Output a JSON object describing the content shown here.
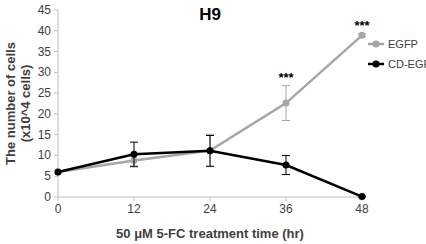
{
  "chart_data": {
    "type": "line",
    "title": "H9",
    "x_label": "50 μM 5-FC treatment time (hr)",
    "y_label": [
      "The number of cells",
      "(x10^4 cells)"
    ],
    "x": [
      0,
      12,
      24,
      36,
      48
    ],
    "xlim": [
      0,
      48
    ],
    "xticks": [
      0,
      12,
      24,
      36,
      48
    ],
    "ylim": [
      0,
      45
    ],
    "yticks": [
      0,
      5,
      10,
      15,
      20,
      25,
      30,
      35,
      40,
      45
    ],
    "grid": false,
    "legend": "right",
    "series": [
      {
        "name": "EGFP",
        "color": "#a6a6a6",
        "marker": "circle",
        "values": [
          6,
          8.8,
          11.2,
          22.6,
          38.9
        ],
        "errors": [
          0,
          1.6,
          3.9,
          4.2,
          0.4
        ]
      },
      {
        "name": "CD-EGFP",
        "color": "#000000",
        "marker": "circle",
        "values": [
          6,
          10.3,
          11.1,
          7.7,
          0.1
        ],
        "errors": [
          0,
          2.9,
          3.7,
          2.3,
          0.1
        ]
      }
    ],
    "annotations": [
      {
        "text": "***",
        "x": 36
      },
      {
        "text": "***",
        "x": 48
      }
    ]
  }
}
